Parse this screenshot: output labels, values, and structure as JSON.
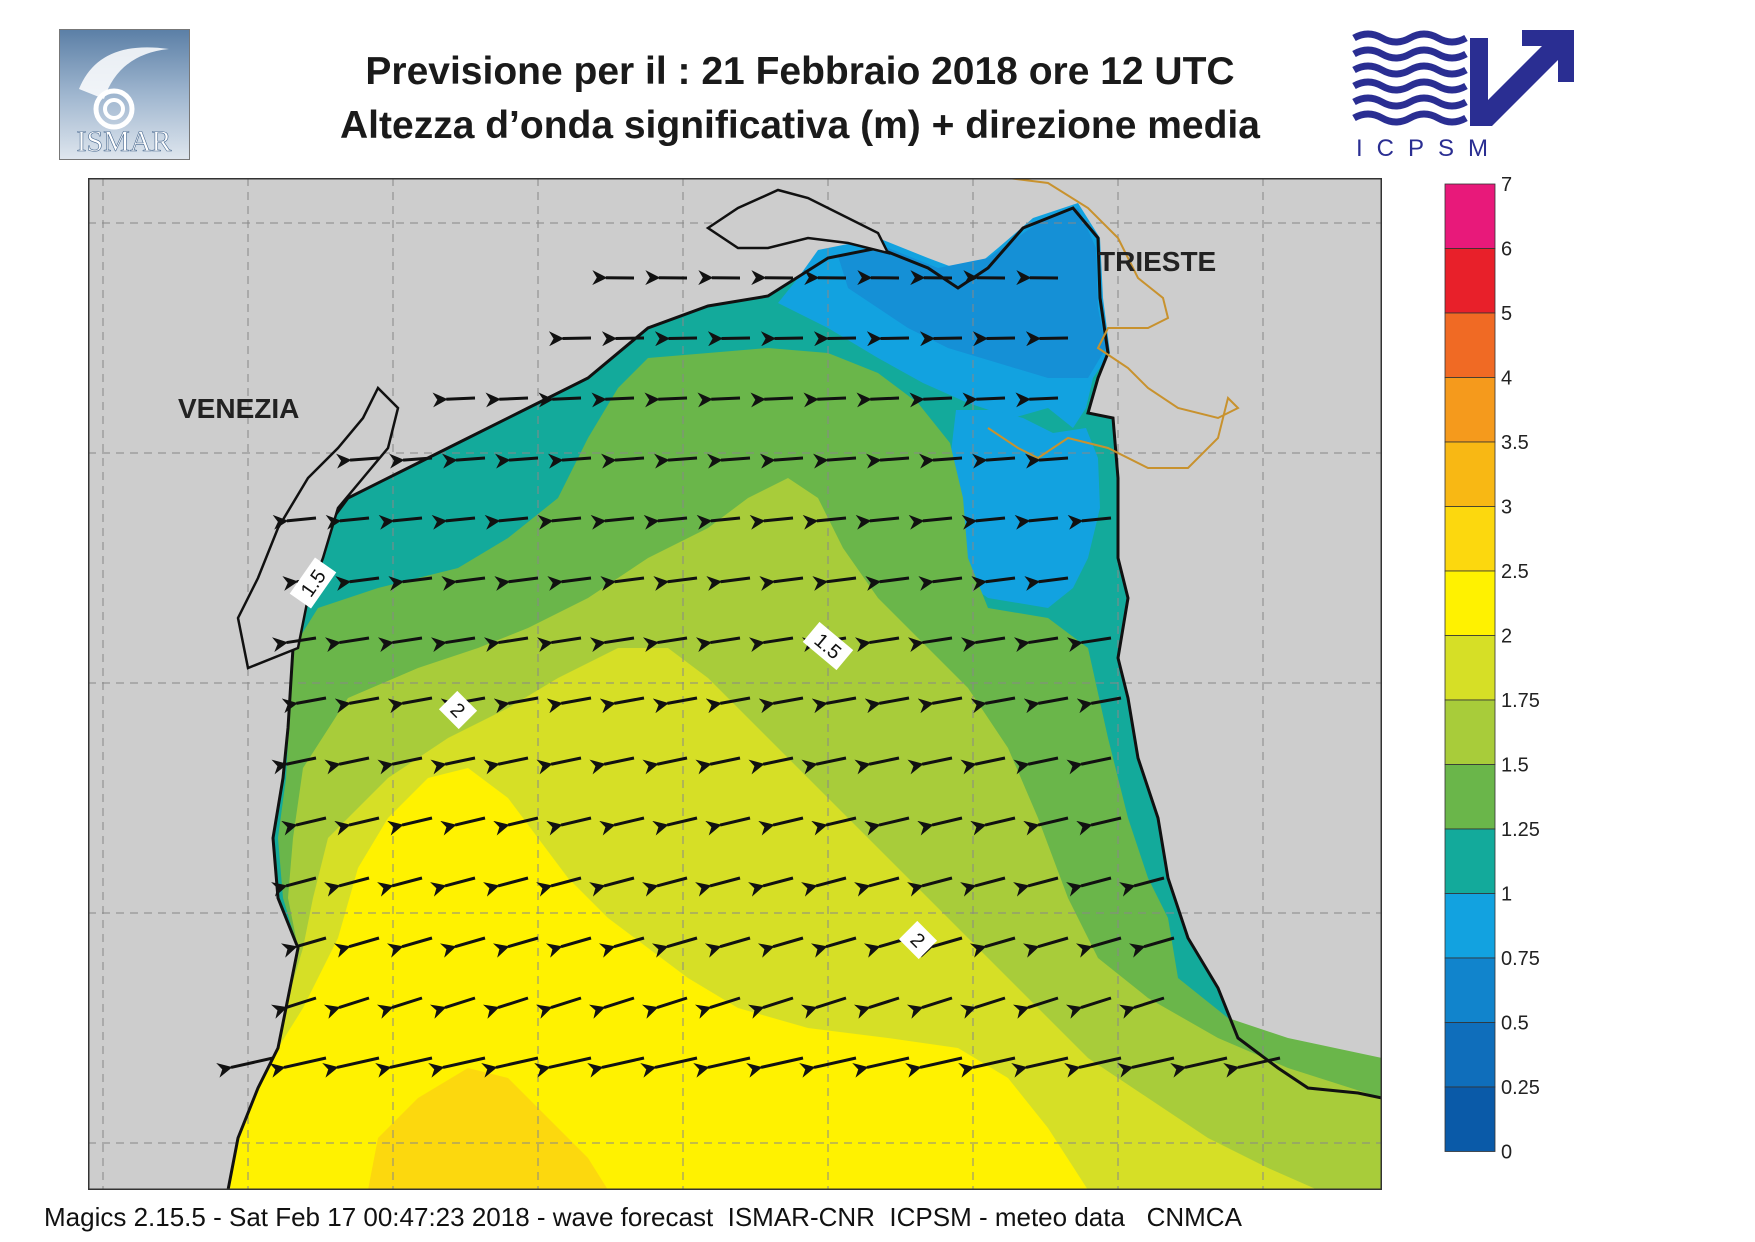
{
  "header": {
    "title_line1": "Previsione per il  :  21  Febbraio 2018   ore 12 UTC",
    "title_line2": "Altezza d’onda significativa (m) + direzione media"
  },
  "logos": {
    "left": {
      "text": "ISMAR",
      "icon": "ismar-logo"
    },
    "right": {
      "text": "ICPSM",
      "icon": "icpsm-logo"
    }
  },
  "map": {
    "place_labels": [
      "VENEZIA",
      "TRIESTE"
    ],
    "contour_labels": [
      "1.5",
      "1.5",
      "2",
      "2"
    ],
    "land_color": "#cdcdcd",
    "grid": true
  },
  "legend": {
    "values": [
      "7",
      "6",
      "5",
      "4",
      "3.5",
      "3",
      "2.5",
      "2",
      "1.75",
      "1.5",
      "1.25",
      "1",
      "0.75",
      "0.5",
      "0.25",
      "0"
    ],
    "colors": [
      "#e8197a",
      "#e8202a",
      "#f06a24",
      "#f59a1c",
      "#f8b814",
      "#fcd80e",
      "#fff200",
      "#d6df26",
      "#a8cc3a",
      "#6ab64a",
      "#13aa9b",
      "#12a2e0",
      "#1184cc",
      "#0f6ebb",
      "#0a5aa8"
    ]
  },
  "footer": {
    "text": "Magics 2.15.5 - Sat Feb 17 00:47:23 2018 - wave forecast  ISMAR-CNR  ICPSM - meteo data   CNMCA"
  }
}
